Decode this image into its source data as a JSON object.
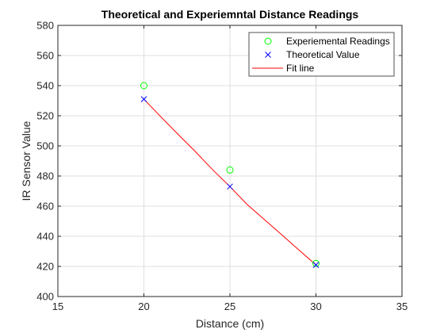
{
  "chart_data": {
    "type": "line",
    "title": "Theoretical and Experiemntal Distance Readings",
    "xlabel": "Distance (cm)",
    "ylabel": "IR Sensor Value",
    "xlim": [
      15,
      35
    ],
    "ylim": [
      400,
      580
    ],
    "xticks": [
      15,
      20,
      25,
      30,
      35
    ],
    "yticks": [
      400,
      420,
      440,
      460,
      480,
      500,
      520,
      540,
      560,
      580
    ],
    "grid": true,
    "legend_position": "top-right",
    "series": [
      {
        "name": "Experiemental Readings",
        "style": "markers",
        "marker": "circle",
        "color": "#00ff00",
        "x": [
          20,
          25,
          30
        ],
        "y": [
          540,
          484,
          422
        ]
      },
      {
        "name": "Theoretical Value",
        "style": "markers",
        "marker": "x",
        "color": "#0000ff",
        "x": [
          20,
          25,
          30
        ],
        "y": [
          531,
          473,
          421
        ]
      },
      {
        "name": "Fit line",
        "style": "line",
        "color": "#ff0000",
        "x": [
          20,
          21,
          22,
          23,
          24,
          25,
          26,
          27,
          28,
          29,
          30
        ],
        "y": [
          531,
          519.1,
          507.5,
          496.1,
          484.1,
          473,
          461.1,
          451.1,
          441.1,
          431,
          421
        ]
      }
    ]
  }
}
